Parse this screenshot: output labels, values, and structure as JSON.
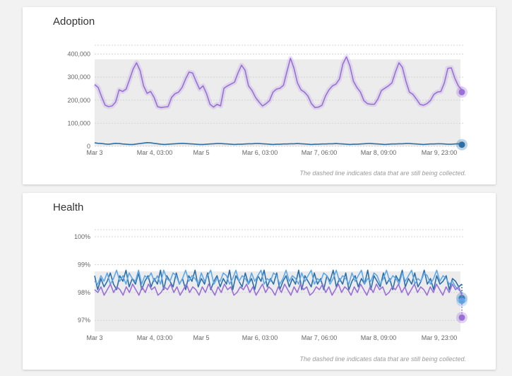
{
  "colors": {
    "purple": "#9a6fd8",
    "blue": "#2c6fa8",
    "light_blue": "#5fa8e8",
    "band": "#ececec",
    "grid": "#d4d4d4"
  },
  "adoption": {
    "title": "Adoption",
    "note": "The dashed line indicates data that are still being collected.",
    "chart_data": {
      "type": "line",
      "title": "Adoption",
      "x_ticks": [
        "Mar 3",
        "Mar 4, 03:00",
        "Mar 5",
        "Mar 6, 03:00",
        "Mar 7, 06:00",
        "Mar 8, 09:00",
        "Mar 9, 23:00"
      ],
      "y_ticks": [
        "0",
        "100,000",
        "200,000",
        "300,000",
        "400,000"
      ],
      "ylim": [
        0,
        420000
      ],
      "grid": true,
      "series": [
        {
          "color": "#9a6fd8",
          "values": [
            268000,
            255000,
            215000,
            178000,
            172000,
            175000,
            192000,
            245000,
            238000,
            248000,
            290000,
            335000,
            362000,
            328000,
            262000,
            230000,
            238000,
            212000,
            172000,
            168000,
            170000,
            172000,
            212000,
            228000,
            235000,
            255000,
            292000,
            322000,
            318000,
            282000,
            248000,
            262000,
            228000,
            182000,
            170000,
            182000,
            175000,
            252000,
            262000,
            270000,
            278000,
            318000,
            352000,
            330000,
            262000,
            242000,
            212000,
            192000,
            175000,
            185000,
            198000,
            235000,
            248000,
            252000,
            265000,
            325000,
            382000,
            338000,
            275000,
            245000,
            235000,
            218000,
            185000,
            168000,
            170000,
            178000,
            218000,
            245000,
            262000,
            270000,
            292000,
            358000,
            388000,
            348000,
            282000,
            255000,
            235000,
            198000,
            185000,
            182000,
            182000,
            205000,
            242000,
            252000,
            262000,
            275000,
            322000,
            362000,
            342000,
            282000,
            235000,
            225000,
            205000,
            182000,
            178000,
            185000,
            198000,
            225000,
            235000,
            238000,
            275000,
            338000,
            340000,
            295000,
            262000,
            245000
          ],
          "dashed_tail": 235000
        },
        {
          "color": "#2c6fa8",
          "values": [
            15000,
            13000,
            12000,
            10000,
            9000,
            11000,
            13000,
            12000,
            10000,
            9000,
            8000,
            8000,
            10000,
            12000,
            14000,
            16000,
            15000,
            13000,
            11000,
            9000,
            8000,
            9000,
            10000,
            11000,
            12000,
            13000,
            12000,
            11000,
            10000,
            9000,
            8000,
            8000,
            9000,
            10000,
            11000,
            12000,
            12000,
            11000,
            10000,
            9000,
            8000,
            9000,
            9000,
            10000,
            11000,
            11000,
            12000,
            12000,
            11000,
            10000,
            9000,
            8000,
            9000,
            9000,
            10000,
            10000,
            11000,
            11000,
            12000,
            11000,
            10000,
            9000,
            8000,
            9000,
            9000,
            10000,
            10000,
            11000,
            11000,
            12000,
            11000,
            10000,
            9000,
            8000,
            9000,
            9000,
            10000,
            11000,
            12000,
            12000,
            11000,
            10000,
            9000,
            8000,
            9000,
            10000,
            10000,
            11000,
            11000,
            12000,
            12000,
            11000,
            10000,
            9000,
            8000,
            9000,
            10000,
            10000,
            11000,
            11000,
            10000,
            9000,
            9000,
            10000,
            11000,
            10000
          ],
          "dashed_tail": 7000
        }
      ]
    }
  },
  "health": {
    "title": "Health",
    "note": "The dashed line indicates data that are still being collected.",
    "chart_data": {
      "type": "line",
      "title": "Health",
      "x_ticks": [
        "Mar 3",
        "Mar 4, 03:00",
        "Mar 5",
        "Mar 6, 03:00",
        "Mar 7, 06:00",
        "Mar 8, 09:00",
        "Mar 9, 23:00"
      ],
      "y_ticks": [
        "97%",
        "98%",
        "99%",
        "100%"
      ],
      "ylim": [
        96.6,
        100.1
      ],
      "grid": true,
      "series": [
        {
          "color": "#2c6fa8",
          "values": [
            98.6,
            98.1,
            98.5,
            98.2,
            98.4,
            98.7,
            98.3,
            98.1,
            98.6,
            98.4,
            98.8,
            98.2,
            98.5,
            98.3,
            98.7,
            98.1,
            98.4,
            98.6,
            98.2,
            98.5,
            98.3,
            98.8,
            98.1,
            98.6,
            98.4,
            98.2,
            98.7,
            98.3,
            98.5,
            98.1,
            98.6,
            98.4,
            98.8,
            98.2,
            98.5,
            98.3,
            98.7,
            98.1,
            98.4,
            98.6,
            98.2,
            98.5,
            98.3,
            98.8,
            98.1,
            98.6,
            98.4,
            98.2,
            98.7,
            98.3,
            98.5,
            98.1,
            98.6,
            98.4,
            98.8,
            98.2,
            98.5,
            98.3,
            98.7,
            98.1,
            98.4,
            98.6,
            98.2,
            98.5,
            98.3,
            98.8,
            98.1,
            98.6,
            98.4,
            98.2,
            98.7,
            98.3,
            98.5,
            98.1,
            98.6,
            98.4,
            98.8,
            98.2,
            98.5,
            98.3,
            98.7,
            98.1,
            98.4,
            98.6,
            98.2,
            98.5,
            98.3,
            98.8,
            98.1,
            98.6,
            98.4,
            98.2,
            98.7,
            98.3,
            98.5,
            98.1,
            98.6,
            98.4,
            98.8,
            98.2,
            98.5,
            98.3,
            98.7,
            98.2,
            98.4,
            98.8,
            98.3,
            98.5,
            98.1,
            98.6,
            98.3,
            98.4,
            98.6,
            98.1,
            98.5,
            98.4,
            98.2,
            98.3
          ],
          "dashed_tail": 97.8
        },
        {
          "color": "#5fa8e8",
          "values": [
            98.4,
            98.3,
            98.6,
            98.4,
            98.7,
            98.3,
            98.5,
            98.8,
            98.4,
            98.6,
            98.3,
            98.7,
            98.5,
            98.4,
            98.8,
            98.3,
            98.6,
            98.5,
            98.7,
            98.4,
            98.6,
            98.3,
            98.8,
            98.5,
            98.4,
            98.7,
            98.6,
            98.3,
            98.5,
            98.8,
            98.4,
            98.6,
            98.5,
            98.3,
            98.7,
            98.4,
            98.6,
            98.8,
            98.3,
            98.5,
            98.4,
            98.7,
            98.6,
            98.3,
            98.5,
            98.8,
            98.4,
            98.6,
            98.5,
            98.3,
            98.7,
            98.4,
            98.6,
            98.8,
            98.3,
            98.5,
            98.4,
            98.7,
            98.6,
            98.3,
            98.5,
            98.8,
            98.4,
            98.6,
            98.5,
            98.3,
            98.7,
            98.4,
            98.6,
            98.8,
            98.3,
            98.5,
            98.4,
            98.7,
            98.6,
            98.3,
            98.5,
            98.8,
            98.4,
            98.6,
            98.5,
            98.3,
            98.7,
            98.4,
            98.6,
            98.8,
            98.3,
            98.5,
            98.4,
            98.7,
            98.6,
            98.3,
            98.5,
            98.8,
            98.4,
            98.6,
            98.5,
            98.3,
            98.7,
            98.4,
            98.6,
            98.8,
            98.3,
            98.5,
            98.4,
            98.7,
            98.6,
            98.3,
            98.5,
            98.8,
            98.4,
            98.6,
            98.5,
            98.3,
            98.4,
            98.2,
            98.1,
            98.0
          ],
          "dashed_tail": 97.7
        },
        {
          "color": "#9a6fd8",
          "values": [
            98.1,
            98.0,
            98.2,
            97.9,
            98.1,
            98.3,
            98.0,
            98.2,
            98.1,
            97.9,
            98.2,
            98.0,
            98.3,
            98.1,
            97.9,
            98.2,
            98.0,
            98.3,
            98.1,
            98.2,
            97.9,
            98.0,
            98.2,
            98.1,
            98.3,
            98.0,
            98.2,
            97.9,
            98.1,
            98.3,
            98.0,
            98.2,
            98.1,
            97.9,
            98.2,
            98.0,
            98.3,
            98.1,
            97.9,
            98.2,
            98.0,
            98.3,
            98.1,
            98.2,
            97.9,
            98.0,
            98.2,
            98.1,
            98.3,
            98.0,
            98.2,
            97.9,
            98.1,
            98.3,
            98.0,
            98.2,
            98.1,
            97.9,
            98.2,
            98.0,
            98.3,
            98.1,
            97.9,
            98.2,
            98.0,
            98.3,
            98.1,
            98.2,
            97.9,
            98.0,
            98.2,
            98.1,
            98.3,
            98.0,
            98.2,
            97.9,
            98.1,
            98.3,
            98.0,
            98.2,
            98.1,
            97.9,
            98.2,
            98.0,
            98.3,
            98.1,
            97.9,
            98.2,
            98.0,
            98.3,
            98.1,
            98.2,
            97.9,
            98.0,
            98.2,
            98.1,
            98.3,
            98.0,
            98.2,
            97.9,
            98.1,
            98.3,
            98.0,
            98.2,
            98.1,
            97.9,
            98.2,
            98.0,
            98.3,
            98.1,
            97.9,
            98.2,
            98.0,
            98.3,
            98.1,
            98.2,
            97.9
          ],
          "dashed_tail": 97.1
        }
      ]
    }
  }
}
